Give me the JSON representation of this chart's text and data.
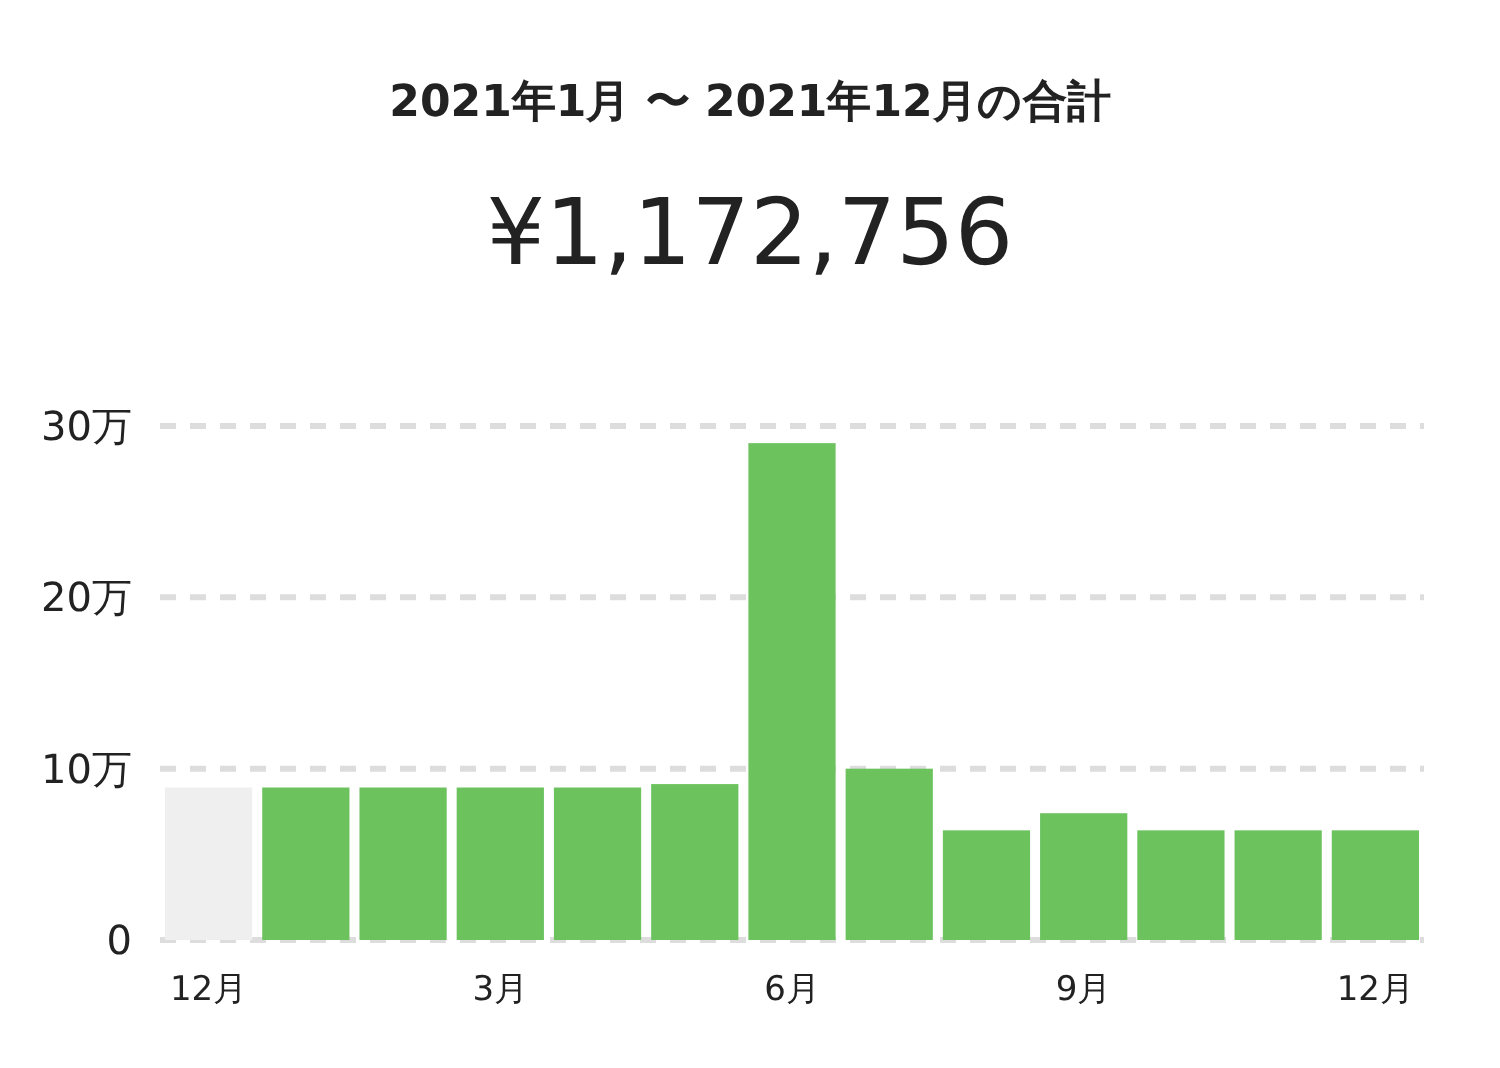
{
  "chart_data": {
    "type": "bar",
    "title": "2021年1月 〜 2021年12月の合計",
    "subtitle": "¥1,172,756",
    "categories": [
      "12月",
      null,
      null,
      "3月",
      null,
      null,
      "6月",
      null,
      null,
      "9月",
      null,
      null,
      "12月"
    ],
    "values": [
      8.9,
      8.9,
      8.9,
      8.9,
      8.9,
      9.1,
      29,
      10,
      6.4,
      7.4,
      6.4,
      6.4,
      6.4
    ],
    "colors": [
      "#efefef",
      "#6cc35e",
      "#6cc35e",
      "#6cc35e",
      "#6cc35e",
      "#6cc35e",
      "#6cc35e",
      "#6cc35e",
      "#6cc35e",
      "#6cc35e",
      "#6cc35e",
      "#6cc35e",
      "#6cc35e"
    ],
    "ylim": [
      0,
      30
    ],
    "yticks": [
      0,
      {
        "value": 10,
        "label": "10万"
      },
      {
        "value": 20,
        "label": "20万"
      },
      {
        "value": 30,
        "label": "30万"
      }
    ],
    "grid": "y"
  }
}
